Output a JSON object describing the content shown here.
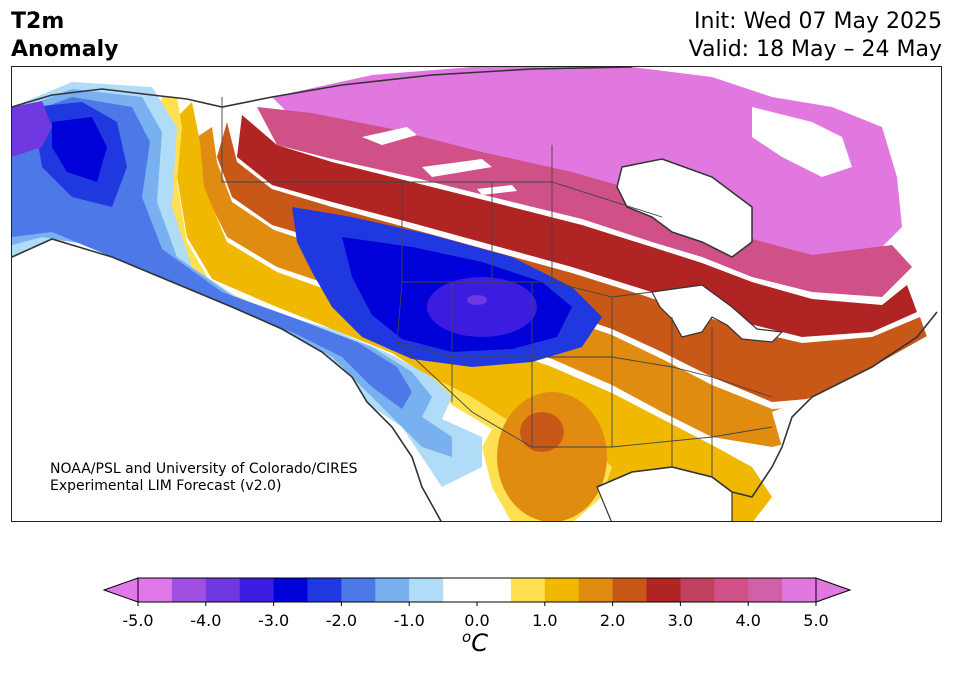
{
  "title": {
    "line1": "T2m",
    "line2": "Anomaly",
    "init": "Init: Wed 07 May 2025",
    "valid": "Valid: 18 May – 24 May"
  },
  "credit": {
    "line1": "NOAA/PSL and University of Colorado/CIRES",
    "line2": "Experimental LIM Forecast (v2.0)"
  },
  "colorbar": {
    "ticks": [
      "-5.0",
      "-4.0",
      "-3.0",
      "-2.0",
      "-1.0",
      "0.0",
      "1.0",
      "2.0",
      "3.0",
      "4.0",
      "5.0"
    ],
    "units_main": "C",
    "units_sup": "o",
    "colors": [
      "#e078e8",
      "#a050e0",
      "#7038e0",
      "#3c1ce0",
      "#0000d8",
      "#2038e0",
      "#4c78e8",
      "#78b0f0",
      "#b0dcf8",
      "#ffffff",
      "#ffffff",
      "#ffe050",
      "#f0b800",
      "#e08c10",
      "#c85818",
      "#b02424",
      "#c04060",
      "#d05088",
      "#d060a8",
      "#e078e0"
    ]
  },
  "map": {
    "colors": {
      "land": "#ffffff",
      "border": "#333333",
      "pink": "#e078e0",
      "magenta": "#d05088",
      "crimson": "#c04060",
      "red": "#b02424",
      "rust": "#c85818",
      "orange": "#e08c10",
      "gold": "#f0b800",
      "yellow": "#ffe050",
      "pale-blue": "#b0dcf8",
      "light-blue": "#78b0f0",
      "mid-blue": "#4c78e8",
      "blue": "#2038e0",
      "deep-blue": "#0000d8",
      "indigo": "#3c1ce0",
      "violet": "#7038e0"
    }
  }
}
